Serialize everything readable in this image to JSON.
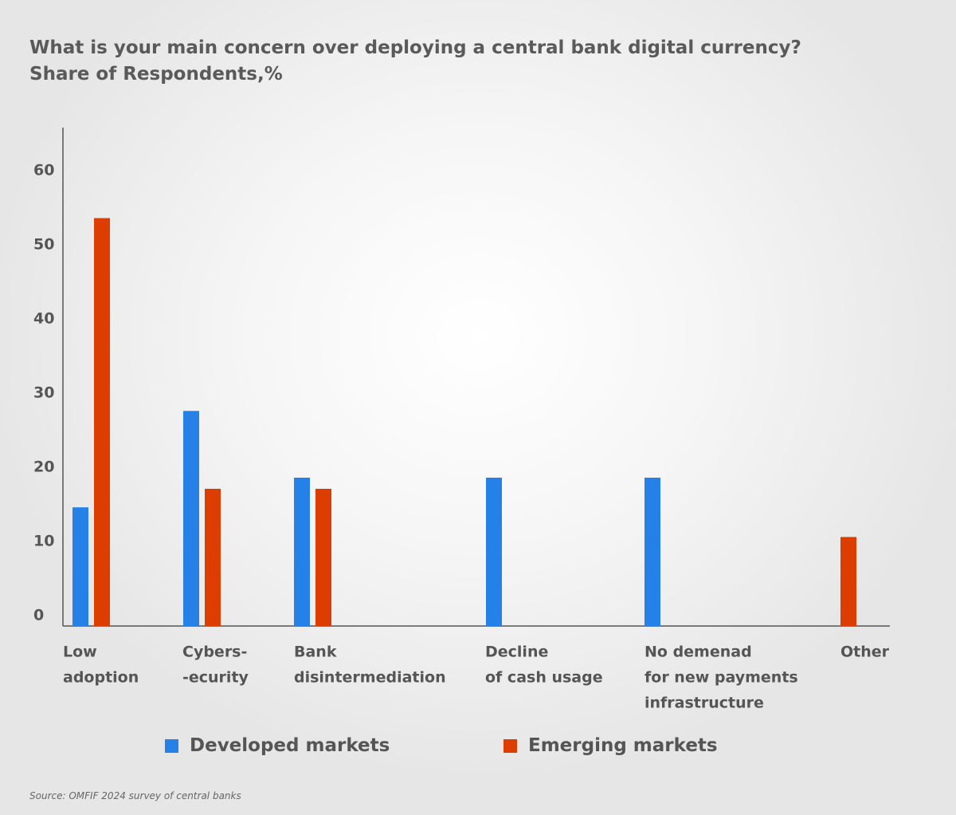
{
  "header": {
    "title_line1": "What is your main concern over deploying a central bank digital currency?",
    "title_line2": "Share of Respondents,%"
  },
  "chart_data": {
    "type": "bar",
    "categories": [
      [
        "Low",
        "adoption"
      ],
      [
        "Cybers-",
        "-ecurity"
      ],
      [
        "Bank",
        "disintermediation"
      ],
      [
        "Decline",
        "of cash usage"
      ],
      [
        "No demenad",
        "for new payments",
        "infrastructure"
      ],
      [
        "Other"
      ]
    ],
    "series": [
      {
        "name": "Developed markets",
        "color": "#2580e8",
        "values": [
          16,
          29,
          20,
          20,
          20,
          0
        ]
      },
      {
        "name": "Emerging markets",
        "color": "#dd3e00",
        "values": [
          55,
          18.5,
          18.5,
          0,
          0,
          12
        ]
      }
    ],
    "yticks": [
      "0",
      "10",
      "20",
      "30",
      "40",
      "50",
      "60"
    ],
    "ylim": [
      0,
      60
    ],
    "legend_position": "bottom",
    "grid": false
  },
  "legend": {
    "developed": "Developed markets",
    "emerging": "Emerging markets",
    "developed_color": "#2580e8",
    "emerging_color": "#dd3e00"
  },
  "source": "Source: OMFIF 2024 survey of central banks"
}
